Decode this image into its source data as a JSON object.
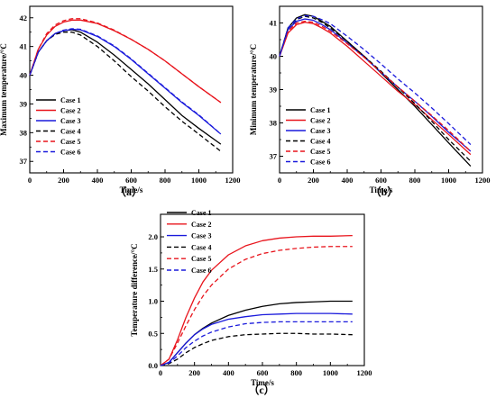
{
  "chart_data": [
    {
      "type": "line",
      "panel_label": "（a）",
      "xlabel": "Time/s",
      "ylabel": "Maximum temperature/°C",
      "xlim": [
        0,
        1200
      ],
      "ylim": [
        36.6,
        42.4
      ],
      "xticks": [
        0,
        200,
        400,
        600,
        800,
        1000,
        1200
      ],
      "yticks": [
        37,
        38,
        39,
        40,
        41,
        42
      ],
      "legend_position": "bottom-left",
      "series": [
        {
          "name": "Case 1",
          "color": "#000000",
          "dash": "solid",
          "x": [
            0,
            50,
            100,
            150,
            200,
            250,
            300,
            400,
            500,
            600,
            700,
            800,
            900,
            1000,
            1130
          ],
          "y": [
            40.0,
            40.8,
            41.2,
            41.45,
            41.55,
            41.58,
            41.5,
            41.15,
            40.7,
            40.2,
            39.7,
            39.15,
            38.6,
            38.15,
            37.6
          ]
        },
        {
          "name": "Case 2",
          "color": "#e8141c",
          "dash": "solid",
          "x": [
            0,
            50,
            100,
            150,
            200,
            250,
            300,
            400,
            500,
            600,
            700,
            800,
            900,
            1000,
            1130
          ],
          "y": [
            40.0,
            40.9,
            41.4,
            41.7,
            41.85,
            41.92,
            41.92,
            41.8,
            41.55,
            41.25,
            40.9,
            40.5,
            40.05,
            39.6,
            39.05
          ]
        },
        {
          "name": "Case 3",
          "color": "#1a1adc",
          "dash": "solid",
          "x": [
            0,
            50,
            100,
            150,
            200,
            250,
            300,
            400,
            500,
            600,
            700,
            800,
            900,
            1000,
            1130
          ],
          "y": [
            40.0,
            40.8,
            41.2,
            41.45,
            41.55,
            41.6,
            41.58,
            41.35,
            41.0,
            40.55,
            40.05,
            39.55,
            39.05,
            38.6,
            37.95
          ]
        },
        {
          "name": "Case 4",
          "color": "#000000",
          "dash": "dashed",
          "x": [
            0,
            50,
            100,
            150,
            200,
            250,
            300,
            400,
            500,
            600,
            700,
            800,
            900,
            1000,
            1130
          ],
          "y": [
            40.0,
            40.8,
            41.2,
            41.42,
            41.5,
            41.5,
            41.4,
            41.0,
            40.5,
            39.95,
            39.45,
            38.9,
            38.4,
            37.95,
            37.35
          ]
        },
        {
          "name": "Case 5",
          "color": "#e8141c",
          "dash": "dashed",
          "x": [
            0,
            50,
            100,
            150,
            200,
            250,
            300,
            400,
            500,
            600,
            700,
            800,
            900,
            1000,
            1130
          ],
          "y": [
            40.0,
            40.9,
            41.45,
            41.75,
            41.9,
            41.97,
            41.97,
            41.82,
            41.57,
            41.25,
            40.9,
            40.5,
            40.05,
            39.6,
            39.05
          ]
        },
        {
          "name": "Case 6",
          "color": "#1a1adc",
          "dash": "dashed",
          "x": [
            0,
            50,
            100,
            150,
            200,
            250,
            300,
            400,
            500,
            600,
            700,
            800,
            900,
            1000,
            1130
          ],
          "y": [
            40.0,
            40.8,
            41.2,
            41.45,
            41.57,
            41.62,
            41.6,
            41.37,
            41.02,
            40.57,
            40.07,
            39.57,
            39.07,
            38.62,
            37.95
          ]
        }
      ]
    },
    {
      "type": "line",
      "panel_label": "（b）",
      "xlabel": "Time/s",
      "ylabel": "Minimum temperature/°C",
      "xlim": [
        0,
        1200
      ],
      "ylim": [
        36.5,
        41.5
      ],
      "xticks": [
        0,
        200,
        400,
        600,
        800,
        1000,
        1200
      ],
      "yticks": [
        37,
        38,
        39,
        40,
        41
      ],
      "legend_position": "bottom-left",
      "series": [
        {
          "name": "Case 1",
          "color": "#000000",
          "dash": "solid",
          "x": [
            0,
            50,
            100,
            150,
            200,
            250,
            300,
            400,
            500,
            600,
            700,
            800,
            900,
            1000,
            1130
          ],
          "y": [
            40.0,
            40.85,
            41.15,
            41.25,
            41.2,
            41.05,
            40.9,
            40.45,
            40.0,
            39.5,
            39.0,
            38.5,
            37.95,
            37.4,
            36.7
          ]
        },
        {
          "name": "Case 2",
          "color": "#e8141c",
          "dash": "solid",
          "x": [
            0,
            50,
            100,
            150,
            200,
            250,
            300,
            400,
            500,
            600,
            700,
            800,
            900,
            1000,
            1130
          ],
          "y": [
            40.0,
            40.7,
            40.95,
            41.02,
            40.98,
            40.85,
            40.7,
            40.3,
            39.85,
            39.4,
            38.95,
            38.55,
            38.1,
            37.65,
            37.05
          ]
        },
        {
          "name": "Case 3",
          "color": "#1a1adc",
          "dash": "solid",
          "x": [
            0,
            50,
            100,
            150,
            200,
            250,
            300,
            400,
            500,
            600,
            700,
            800,
            900,
            1000,
            1130
          ],
          "y": [
            40.0,
            40.8,
            41.05,
            41.12,
            41.08,
            40.95,
            40.8,
            40.4,
            39.98,
            39.52,
            39.07,
            38.65,
            38.2,
            37.72,
            37.15
          ]
        },
        {
          "name": "Case 4",
          "color": "#000000",
          "dash": "dashed",
          "x": [
            0,
            50,
            100,
            150,
            200,
            250,
            300,
            400,
            500,
            600,
            700,
            800,
            900,
            1000,
            1130
          ],
          "y": [
            40.0,
            40.85,
            41.1,
            41.2,
            41.15,
            41.02,
            40.85,
            40.45,
            40.0,
            39.55,
            39.07,
            38.58,
            38.05,
            37.5,
            36.85
          ]
        },
        {
          "name": "Case 5",
          "color": "#e8141c",
          "dash": "dashed",
          "x": [
            0,
            50,
            100,
            150,
            200,
            250,
            300,
            400,
            500,
            600,
            700,
            800,
            900,
            1000,
            1130
          ],
          "y": [
            40.0,
            40.75,
            41.0,
            41.05,
            41.02,
            40.9,
            40.75,
            40.38,
            39.97,
            39.52,
            39.08,
            38.65,
            38.22,
            37.77,
            37.15
          ]
        },
        {
          "name": "Case 6",
          "color": "#1a1adc",
          "dash": "dashed",
          "x": [
            0,
            50,
            100,
            150,
            200,
            250,
            300,
            400,
            500,
            600,
            700,
            800,
            900,
            1000,
            1130
          ],
          "y": [
            40.0,
            40.85,
            41.12,
            41.22,
            41.2,
            41.1,
            40.98,
            40.6,
            40.2,
            39.77,
            39.32,
            38.9,
            38.45,
            37.98,
            37.35
          ]
        }
      ]
    },
    {
      "type": "line",
      "panel_label": "（c）",
      "xlabel": "Time/s",
      "ylabel": "Temperature difference/°C",
      "xlim": [
        0,
        1200
      ],
      "ylim": [
        0.0,
        2.35
      ],
      "xticks": [
        0,
        200,
        400,
        600,
        800,
        1000,
        1200
      ],
      "yticks": [
        0.0,
        0.5,
        1.0,
        1.5,
        2.0
      ],
      "legend_position": "top-left",
      "series": [
        {
          "name": "Case 1",
          "color": "#000000",
          "dash": "solid",
          "x": [
            0,
            50,
            100,
            150,
            200,
            250,
            300,
            400,
            500,
            600,
            700,
            800,
            900,
            1000,
            1130
          ],
          "y": [
            0.0,
            0.05,
            0.2,
            0.35,
            0.48,
            0.58,
            0.66,
            0.78,
            0.86,
            0.92,
            0.96,
            0.98,
            0.99,
            1.0,
            1.0
          ]
        },
        {
          "name": "Case 2",
          "color": "#e8141c",
          "dash": "solid",
          "x": [
            0,
            50,
            100,
            150,
            200,
            250,
            300,
            400,
            500,
            600,
            700,
            800,
            900,
            1000,
            1130
          ],
          "y": [
            0.0,
            0.1,
            0.4,
            0.75,
            1.05,
            1.3,
            1.48,
            1.72,
            1.86,
            1.94,
            1.98,
            2.0,
            2.01,
            2.01,
            2.02
          ]
        },
        {
          "name": "Case 3",
          "color": "#1a1adc",
          "dash": "solid",
          "x": [
            0,
            50,
            100,
            150,
            200,
            250,
            300,
            400,
            500,
            600,
            700,
            800,
            900,
            1000,
            1130
          ],
          "y": [
            0.0,
            0.05,
            0.2,
            0.35,
            0.48,
            0.57,
            0.64,
            0.72,
            0.76,
            0.79,
            0.8,
            0.81,
            0.81,
            0.81,
            0.8
          ]
        },
        {
          "name": "Case 4",
          "color": "#000000",
          "dash": "dashed",
          "x": [
            0,
            50,
            100,
            150,
            200,
            250,
            300,
            400,
            500,
            600,
            700,
            800,
            900,
            1000,
            1130
          ],
          "y": [
            0.0,
            0.03,
            0.1,
            0.2,
            0.28,
            0.34,
            0.39,
            0.45,
            0.48,
            0.49,
            0.5,
            0.5,
            0.49,
            0.49,
            0.48
          ]
        },
        {
          "name": "Case 5",
          "color": "#e8141c",
          "dash": "dashed",
          "x": [
            0,
            50,
            100,
            150,
            200,
            250,
            300,
            400,
            500,
            600,
            700,
            800,
            900,
            1000,
            1130
          ],
          "y": [
            0.0,
            0.1,
            0.35,
            0.62,
            0.87,
            1.08,
            1.25,
            1.5,
            1.65,
            1.74,
            1.79,
            1.82,
            1.84,
            1.85,
            1.85
          ]
        },
        {
          "name": "Case 6",
          "color": "#1a1adc",
          "dash": "dashed",
          "x": [
            0,
            50,
            100,
            150,
            200,
            250,
            300,
            400,
            500,
            600,
            700,
            800,
            900,
            1000,
            1130
          ],
          "y": [
            0.0,
            0.04,
            0.15,
            0.28,
            0.38,
            0.46,
            0.52,
            0.6,
            0.65,
            0.67,
            0.68,
            0.68,
            0.68,
            0.68,
            0.68
          ]
        }
      ]
    }
  ]
}
